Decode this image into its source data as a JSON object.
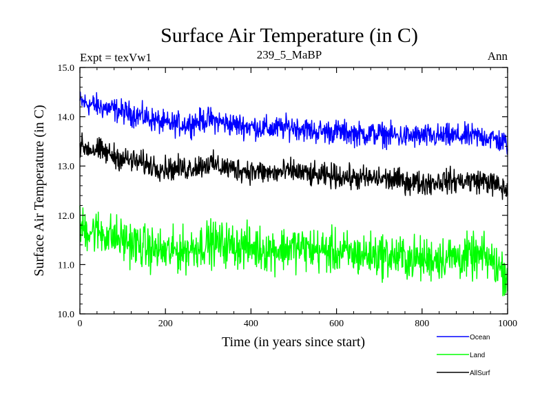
{
  "chart_data": {
    "type": "line",
    "title": "Surface Air Temperature (in C)",
    "subtitle_left": "Expt = texVw1",
    "subtitle_center": "239_5_MaBP",
    "subtitle_right": "Ann",
    "xlabel": "Time (in years since start)",
    "ylabel": "Surface Air Temperature (in C)",
    "xlim": [
      0,
      1000
    ],
    "ylim": [
      10.0,
      15.0
    ],
    "x_ticks": [
      0,
      200,
      400,
      600,
      800,
      1000
    ],
    "x_tick_labels": [
      "0",
      "200",
      "400",
      "600",
      "800",
      "1000"
    ],
    "y_ticks": [
      10.0,
      11.0,
      12.0,
      13.0,
      14.0,
      15.0
    ],
    "y_tick_labels": [
      "10.0",
      "11.0",
      "12.0",
      "13.0",
      "14.0",
      "15.0"
    ],
    "legend_position": "bottom-right outside",
    "series": [
      {
        "name": "Ocean",
        "color": "#0000ff",
        "x": [
          0,
          50,
          100,
          150,
          200,
          250,
          300,
          350,
          400,
          450,
          500,
          550,
          600,
          650,
          700,
          750,
          800,
          850,
          900,
          950,
          1000
        ],
        "values": [
          14.3,
          14.2,
          14.1,
          14.0,
          13.85,
          13.85,
          13.95,
          13.85,
          13.8,
          13.75,
          13.8,
          13.7,
          13.7,
          13.65,
          13.65,
          13.6,
          13.6,
          13.6,
          13.6,
          13.6,
          13.45
        ],
        "noise": 0.12
      },
      {
        "name": "Land",
        "color": "#00ff00",
        "x": [
          0,
          50,
          100,
          150,
          200,
          250,
          300,
          350,
          400,
          450,
          500,
          550,
          600,
          650,
          700,
          750,
          800,
          850,
          900,
          950,
          1000
        ],
        "values": [
          11.75,
          11.65,
          11.5,
          11.35,
          11.25,
          11.3,
          11.45,
          11.4,
          11.35,
          11.3,
          11.35,
          11.3,
          11.25,
          11.2,
          11.2,
          11.15,
          11.1,
          11.15,
          11.15,
          11.15,
          10.8
        ],
        "noise": 0.22
      },
      {
        "name": "AllSurf",
        "color": "#000000",
        "x": [
          0,
          50,
          100,
          150,
          200,
          250,
          300,
          350,
          400,
          450,
          500,
          550,
          600,
          650,
          700,
          750,
          800,
          850,
          900,
          950,
          1000
        ],
        "values": [
          13.4,
          13.3,
          13.15,
          13.05,
          12.95,
          12.95,
          13.05,
          12.95,
          12.9,
          12.85,
          12.9,
          12.8,
          12.8,
          12.75,
          12.75,
          12.7,
          12.65,
          12.7,
          12.7,
          12.7,
          12.5
        ],
        "noise": 0.12
      }
    ]
  }
}
